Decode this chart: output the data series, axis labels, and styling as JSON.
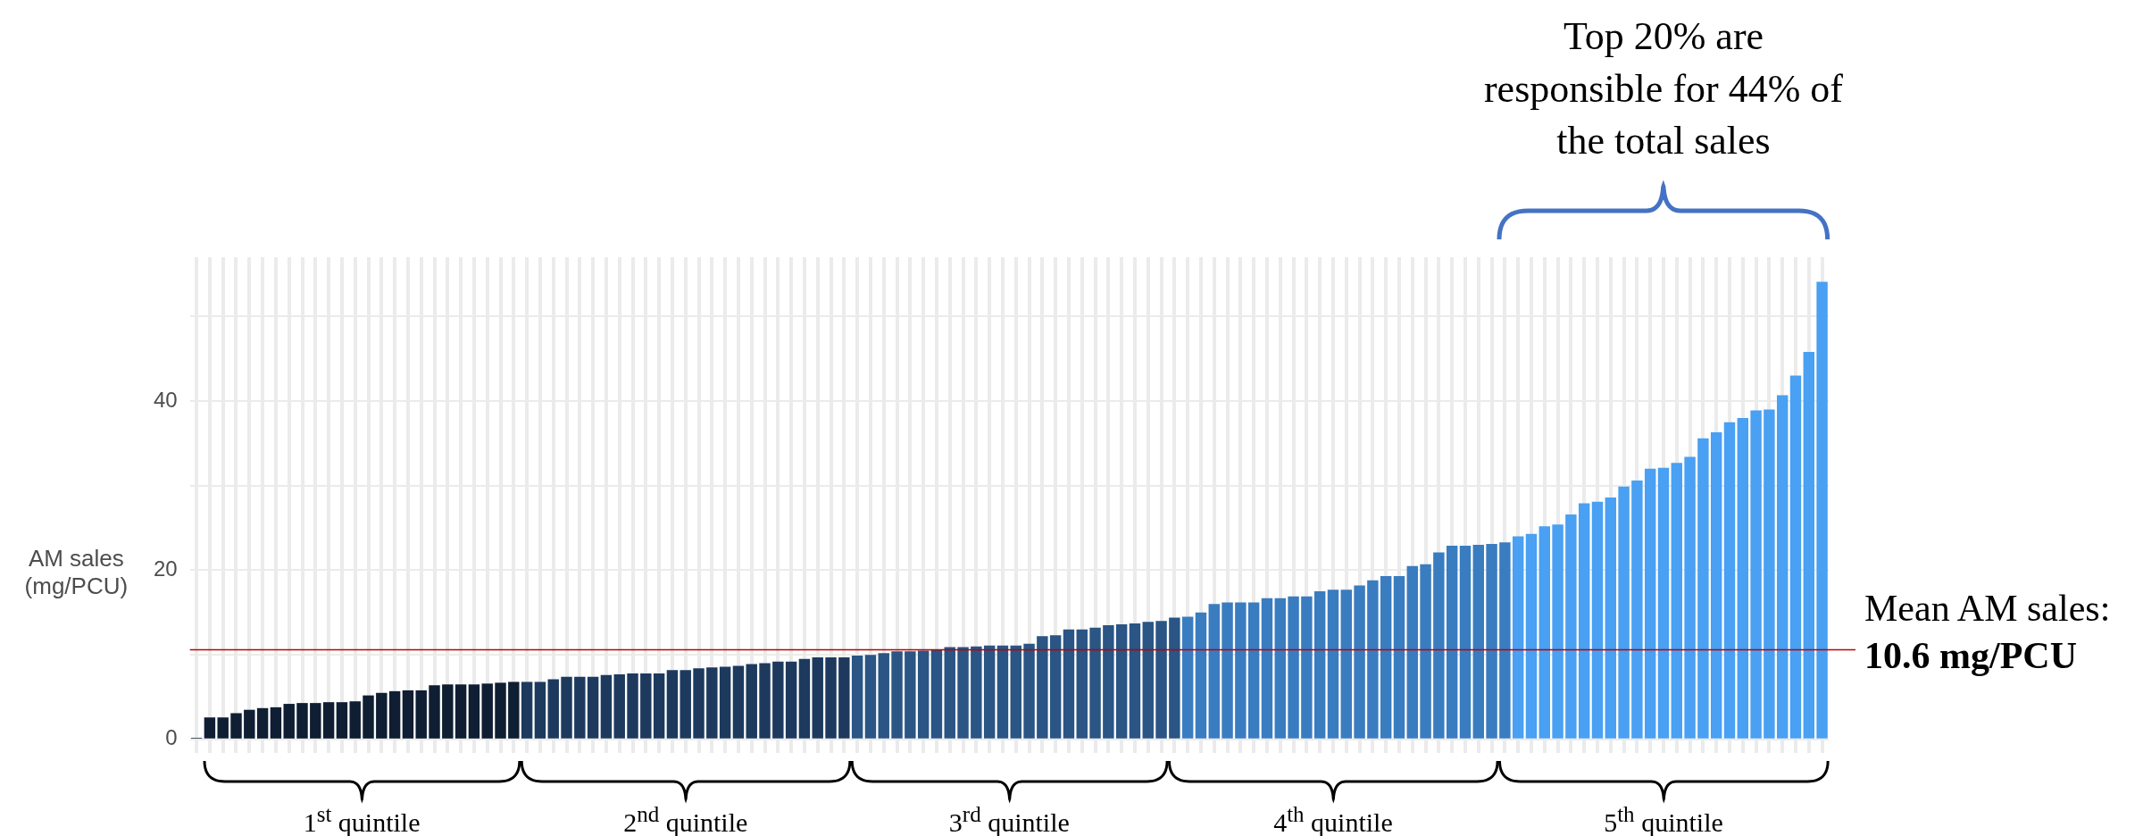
{
  "chart_data": {
    "type": "bar",
    "ylabel": "AM sales\n(mg/PCU)",
    "categories": [
      null,
      null,
      null,
      null,
      null,
      null,
      null,
      null,
      null,
      null,
      null,
      null,
      null,
      null,
      null,
      null,
      null,
      null,
      null,
      null,
      null,
      null,
      null,
      null,
      null,
      null,
      null,
      null,
      null,
      null,
      null,
      null,
      null,
      null,
      null,
      null,
      null,
      null,
      null,
      null,
      null,
      null,
      null,
      null,
      null,
      null,
      null,
      null,
      null,
      null,
      null,
      null,
      null,
      null,
      null,
      null,
      null,
      null,
      null,
      null,
      null,
      null,
      null,
      null,
      null,
      null,
      null,
      null,
      null,
      null,
      null,
      null,
      null,
      null,
      null,
      null,
      null,
      null,
      null,
      null,
      null,
      null,
      null,
      null,
      null,
      null,
      null,
      null,
      null,
      null,
      null,
      null,
      null,
      null,
      null,
      null,
      null,
      null,
      null,
      null,
      null,
      null,
      null,
      null,
      null,
      null,
      null,
      null,
      null,
      null,
      null,
      null,
      null,
      null,
      null,
      null,
      null,
      null,
      null,
      null,
      null,
      null,
      null,
      null
    ],
    "values": [
      0.2,
      2.6,
      2.6,
      3.1,
      3.5,
      3.7,
      3.8,
      4.2,
      4.3,
      4.3,
      4.4,
      4.4,
      4.5,
      5.2,
      5.5,
      5.7,
      5.8,
      5.8,
      6.4,
      6.5,
      6.5,
      6.5,
      6.6,
      6.7,
      6.8,
      6.8,
      6.8,
      7.1,
      7.4,
      7.4,
      7.4,
      7.6,
      7.7,
      7.8,
      7.8,
      7.8,
      8.2,
      8.2,
      8.4,
      8.5,
      8.6,
      8.7,
      8.9,
      9.0,
      9.2,
      9.2,
      9.5,
      9.7,
      9.7,
      9.7,
      9.9,
      10.0,
      10.2,
      10.4,
      10.4,
      10.5,
      10.6,
      10.9,
      10.9,
      11.0,
      11.1,
      11.1,
      11.1,
      11.3,
      12.2,
      12.3,
      13.0,
      13.0,
      13.2,
      13.5,
      13.6,
      13.7,
      13.9,
      14.0,
      14.4,
      14.5,
      15.0,
      16.0,
      16.2,
      16.2,
      16.2,
      16.7,
      16.7,
      16.9,
      16.9,
      17.5,
      17.7,
      17.7,
      18.2,
      18.8,
      19.3,
      19.3,
      20.5,
      20.7,
      22.1,
      22.9,
      22.9,
      23.0,
      23.1,
      23.3,
      24.0,
      24.3,
      25.2,
      25.4,
      26.6,
      27.9,
      28.1,
      28.6,
      29.9,
      30.6,
      32.0,
      32.1,
      32.7,
      33.4,
      35.6,
      36.3,
      37.5,
      38.0,
      38.9,
      39.0,
      40.7,
      43.0,
      45.8,
      54.1
    ],
    "colors": [
      "#0f1e33",
      "#0f1e33",
      "#0f1e33",
      "#0f1e33",
      "#0f1e33",
      "#0f1e33",
      "#0f1e33",
      "#0f1e33",
      "#0f1e33",
      "#0f1e33",
      "#0f1e33",
      "#0f1e33",
      "#0f1e33",
      "#0f1e33",
      "#0f1e33",
      "#0f1e33",
      "#0f1e33",
      "#0f1e33",
      "#0f1e33",
      "#0f1e33",
      "#0f1e33",
      "#0f1e33",
      "#0f1e33",
      "#0f1e33",
      "#0f1e33",
      "#1d3a5e",
      "#1d3a5e",
      "#1d3a5e",
      "#1d3a5e",
      "#1d3a5e",
      "#1d3a5e",
      "#1d3a5e",
      "#1d3a5e",
      "#1d3a5e",
      "#1d3a5e",
      "#1d3a5e",
      "#1d3a5e",
      "#1d3a5e",
      "#1d3a5e",
      "#1d3a5e",
      "#1d3a5e",
      "#1d3a5e",
      "#1d3a5e",
      "#1d3a5e",
      "#1d3a5e",
      "#1d3a5e",
      "#1d3a5e",
      "#1d3a5e",
      "#1d3a5e",
      "#1d3a5e",
      "#2a5584",
      "#2a5584",
      "#2a5584",
      "#2a5584",
      "#2a5584",
      "#2a5584",
      "#2a5584",
      "#2a5584",
      "#2a5584",
      "#2a5584",
      "#2a5584",
      "#2a5584",
      "#2a5584",
      "#2a5584",
      "#2a5584",
      "#2a5584",
      "#2a5584",
      "#2a5584",
      "#2a5584",
      "#2a5584",
      "#2a5584",
      "#2a5584",
      "#2a5584",
      "#2a5584",
      "#2a5584",
      "#3a7cc0",
      "#3a7cc0",
      "#3a7cc0",
      "#3a7cc0",
      "#3a7cc0",
      "#3a7cc0",
      "#3a7cc0",
      "#3a7cc0",
      "#3a7cc0",
      "#3a7cc0",
      "#3a7cc0",
      "#3a7cc0",
      "#3a7cc0",
      "#3a7cc0",
      "#3a7cc0",
      "#3a7cc0",
      "#3a7cc0",
      "#3a7cc0",
      "#3a7cc0",
      "#3a7cc0",
      "#3a7cc0",
      "#3a7cc0",
      "#3a7cc0",
      "#3a7cc0",
      "#3a7cc0",
      "#4aa0f2",
      "#4aa0f2",
      "#4aa0f2",
      "#4aa0f2",
      "#4aa0f2",
      "#4aa0f2",
      "#4aa0f2",
      "#4aa0f2",
      "#4aa0f2",
      "#4aa0f2",
      "#4aa0f2",
      "#4aa0f2",
      "#4aa0f2",
      "#4aa0f2",
      "#4aa0f2",
      "#4aa0f2",
      "#4aa0f2",
      "#4aa0f2",
      "#4aa0f2",
      "#4aa0f2",
      "#4aa0f2",
      "#4aa0f2",
      "#4aa0f2",
      "#4aa0f2"
    ],
    "ylim": [
      -1.6,
      57
    ],
    "yticks": [
      0,
      {
        "value": 10,
        "label": null
      },
      20,
      {
        "value": 30,
        "label": null
      },
      40,
      {
        "value": 50,
        "label": null
      }
    ],
    "grid": true,
    "tick_labels": "y",
    "ref_lines": [
      {
        "axis": "y",
        "value": 10.6,
        "label": "Mean AM sales:\n10.6 mg/PCU",
        "color": "#c00000"
      }
    ],
    "annotations": [
      "Top 20% are\nresponsible for 44% of\nthe total sales",
      "1$^{st}$ quintile",
      "2$^{nd}$ quintile",
      "3$^{rd}$ quintile",
      "4$^{th}$ quintile",
      "5$^{th}$ quintile"
    ]
  }
}
